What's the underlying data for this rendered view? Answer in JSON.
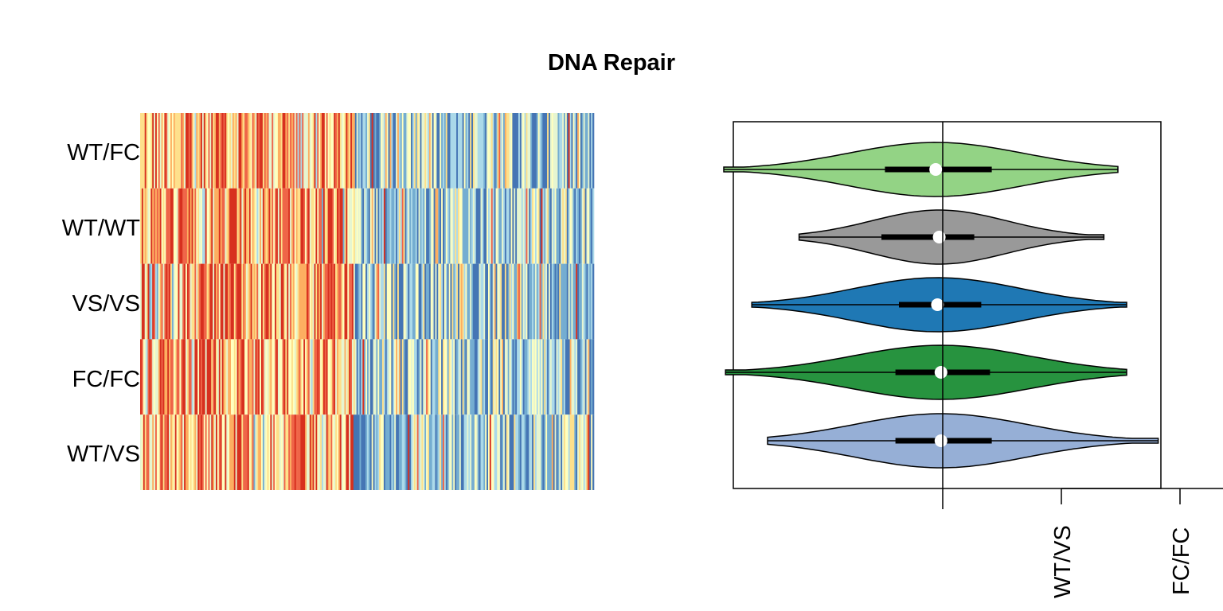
{
  "chart_data": [
    {
      "type": "heatmap",
      "title": "DNA Repair",
      "rows": [
        "WT/FC",
        "WT/WT",
        "VS/VS",
        "FC/FC",
        "WT/VS"
      ],
      "columns_count": 300,
      "palette": [
        "#d7301f",
        "#ef6548",
        "#fdae61",
        "#fee08b",
        "#ffffbf",
        "#e6f5d0",
        "#abd9e9",
        "#74add1",
        "#4575b4"
      ],
      "left_block_fraction": 0.47,
      "row_bias": [
        0.25,
        0.35,
        0.5,
        0.25,
        0.5
      ]
    },
    {
      "type": "violin",
      "groups": [
        {
          "name": "WT/FC",
          "color": "#93d385",
          "min": -1.25,
          "max": 1.0,
          "q1": -0.33,
          "median": -0.04,
          "q3": 0.28,
          "width": 0.47
        },
        {
          "name": "WT/WT",
          "color": "#999999",
          "min": -0.82,
          "max": 0.92,
          "q1": -0.35,
          "median": -0.02,
          "q3": 0.18,
          "width": 0.47
        },
        {
          "name": "VS/VS",
          "color": "#1f78b4",
          "min": -1.09,
          "max": 1.05,
          "q1": -0.25,
          "median": -0.03,
          "q3": 0.22,
          "width": 0.47
        },
        {
          "name": "FC/FC",
          "color": "#27933f",
          "min": -1.24,
          "max": 1.05,
          "q1": -0.27,
          "median": -0.01,
          "q3": 0.27,
          "width": 0.47
        },
        {
          "name": "WT/VS",
          "color": "#96afd6",
          "min": -1.0,
          "max": 1.23,
          "q1": -0.27,
          "median": -0.01,
          "q3": 0.28,
          "width": 0.47
        }
      ],
      "vline": 0,
      "xlim": [
        -1.3,
        1.35
      ],
      "x_tick_labels": [
        "WT/VS",
        "FC/FC"
      ]
    }
  ]
}
